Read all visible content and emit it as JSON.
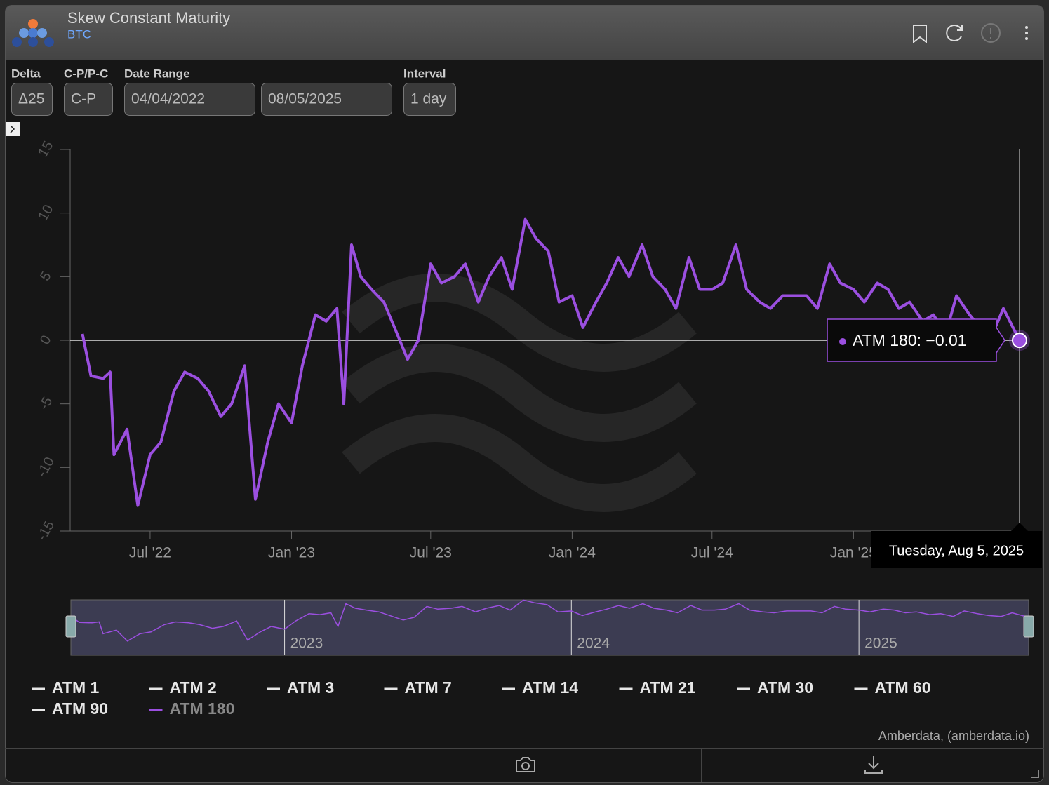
{
  "header": {
    "title": "Skew Constant Maturity",
    "subtitle": "BTC"
  },
  "controls": [
    {
      "label": "Delta",
      "values": [
        "Δ25"
      ]
    },
    {
      "label": "C-P/P-C",
      "values": [
        "C-P"
      ]
    },
    {
      "label": "Date Range",
      "values": [
        "04/04/2022",
        "08/05/2025"
      ]
    },
    {
      "label": "Interval",
      "values": [
        "1 day"
      ]
    }
  ],
  "chart_data": {
    "type": "line",
    "x": [
      "2022-04-04",
      "2022-04-15",
      "2022-05-01",
      "2022-05-10",
      "2022-05-15",
      "2022-06-01",
      "2022-06-15",
      "2022-07-01",
      "2022-07-15",
      "2022-08-01",
      "2022-08-15",
      "2022-09-01",
      "2022-09-15",
      "2022-10-01",
      "2022-10-15",
      "2022-11-01",
      "2022-11-15",
      "2022-12-01",
      "2022-12-15",
      "2023-01-01",
      "2023-01-15",
      "2023-02-01",
      "2023-02-15",
      "2023-03-01",
      "2023-03-10",
      "2023-03-20",
      "2023-04-01",
      "2023-04-15",
      "2023-05-01",
      "2023-05-15",
      "2023-06-01",
      "2023-06-15",
      "2023-07-01",
      "2023-07-15",
      "2023-08-01",
      "2023-08-15",
      "2023-09-01",
      "2023-09-15",
      "2023-10-01",
      "2023-10-15",
      "2023-11-01",
      "2023-11-15",
      "2023-12-01",
      "2023-12-15",
      "2024-01-01",
      "2024-01-15",
      "2024-02-01",
      "2024-02-15",
      "2024-03-01",
      "2024-03-15",
      "2024-04-01",
      "2024-04-15",
      "2024-05-01",
      "2024-05-15",
      "2024-06-01",
      "2024-06-15",
      "2024-07-01",
      "2024-07-15",
      "2024-08-01",
      "2024-08-15",
      "2024-09-01",
      "2024-09-15",
      "2024-10-01",
      "2024-10-15",
      "2024-11-01",
      "2024-11-15",
      "2024-12-01",
      "2024-12-15",
      "2025-01-01",
      "2025-01-15",
      "2025-02-01",
      "2025-02-15",
      "2025-03-01",
      "2025-03-15",
      "2025-04-01",
      "2025-04-15",
      "2025-05-01",
      "2025-05-15",
      "2025-06-01",
      "2025-06-15",
      "2025-07-01",
      "2025-07-15",
      "2025-08-05"
    ],
    "series": [
      {
        "name": "ATM 180",
        "color": "#9b4fe0",
        "values": [
          0.5,
          -2.8,
          -3,
          -2.5,
          -9,
          -7,
          -13,
          -9,
          -8,
          -4,
          -2.5,
          -3,
          -4,
          -6,
          -5,
          -2,
          -12.5,
          -8,
          -5,
          -6.5,
          -2,
          2,
          1.5,
          2.5,
          -5,
          7.5,
          5,
          4,
          3,
          1,
          -1.5,
          0,
          6,
          4.5,
          5,
          6,
          3,
          5,
          6.5,
          4,
          9.5,
          8,
          7,
          3,
          3.5,
          1,
          3,
          4.5,
          6.5,
          5,
          7.5,
          5,
          4,
          2.5,
          6.5,
          4,
          4,
          4.5,
          7.5,
          4,
          3,
          2.5,
          3.5,
          3.5,
          3.5,
          2.5,
          6,
          4.5,
          4,
          3,
          4.5,
          4,
          2.5,
          3,
          1.5,
          2,
          0.5,
          3.5,
          2,
          1,
          0.5,
          2.5,
          -0.01
        ]
      }
    ],
    "legend": [
      "ATM 1",
      "ATM 2",
      "ATM 3",
      "ATM 7",
      "ATM 14",
      "ATM 21",
      "ATM 30",
      "ATM 60",
      "ATM 90"
    ],
    "legend_color": "#e6e6e6",
    "xlim": [
      "2022-03-19",
      "2025-08-05"
    ],
    "xticks": [
      {
        "value": "2022-07-01",
        "label": "Jul '22"
      },
      {
        "value": "2023-01-01",
        "label": "Jan '23"
      },
      {
        "value": "2023-07-01",
        "label": "Jul '23"
      },
      {
        "value": "2024-01-01",
        "label": "Jan '24"
      },
      {
        "value": "2024-07-01",
        "label": "Jul '24"
      },
      {
        "value": "2025-01-01",
        "label": "Jan '25"
      }
    ],
    "ylim": [
      -15,
      15
    ],
    "yticks": [
      -15,
      -10,
      -5,
      0,
      5,
      10,
      15
    ],
    "plot_line": 0,
    "tooltip": {
      "text": "ATM 180: −0.01",
      "date": "Tuesday, Aug 5, 2025"
    },
    "navigator_ticks": [
      {
        "value": "2023-01-01",
        "label": "2023"
      },
      {
        "value": "2024-01-01",
        "label": "2024"
      },
      {
        "value": "2025-01-01",
        "label": "2025"
      }
    ],
    "credit": "Amberdata, (amberdata.io)"
  }
}
